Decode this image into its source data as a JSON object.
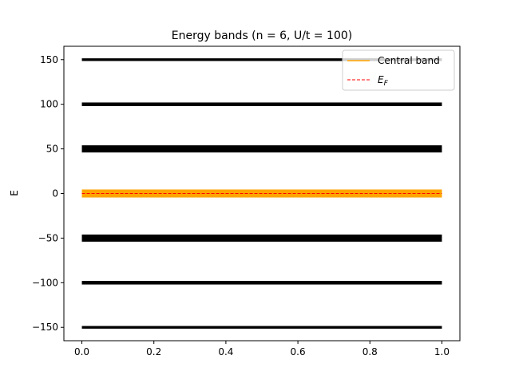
{
  "chart_data": {
    "type": "bar",
    "title": "Energy bands (n = 6, U/t = 100)",
    "xlabel": "",
    "ylabel": "E",
    "xlim": [
      -0.05,
      1.05
    ],
    "ylim": [
      -165,
      165
    ],
    "x_ticks": [
      0.0,
      0.2,
      0.4,
      0.6,
      0.8,
      1.0
    ],
    "x_tick_labels": [
      "0.0",
      "0.2",
      "0.4",
      "0.6",
      "0.8",
      "1.0"
    ],
    "y_ticks": [
      -150,
      -100,
      -50,
      0,
      50,
      100,
      150
    ],
    "y_tick_labels": [
      "−150",
      "−100",
      "−50",
      "0",
      "50",
      "100",
      "150"
    ],
    "bands": [
      {
        "center": 150,
        "lower": 148.5,
        "upper": 151.5,
        "color": "#000000",
        "central": false
      },
      {
        "center": 100,
        "lower": 98,
        "upper": 102,
        "color": "#000000",
        "central": false
      },
      {
        "center": 50,
        "lower": 46,
        "upper": 54,
        "color": "#000000",
        "central": false
      },
      {
        "center": 0,
        "lower": -4.5,
        "upper": 4.5,
        "color": "#ffa500",
        "central": true
      },
      {
        "center": -50,
        "lower": -54,
        "upper": -46,
        "color": "#000000",
        "central": false
      },
      {
        "center": -100,
        "lower": -102,
        "upper": -98,
        "color": "#000000",
        "central": false
      },
      {
        "center": -150,
        "lower": -151.5,
        "upper": -148.5,
        "color": "#000000",
        "central": false
      }
    ],
    "band_x_range": [
      0.0,
      1.0
    ],
    "fermi_level": 0,
    "fermi_color": "#ff0000",
    "legend": {
      "placement": "top-right",
      "entries": [
        {
          "label": "Central band",
          "color": "#ffa500",
          "style": "solid"
        },
        {
          "label": "E",
          "subscript": "F",
          "color": "#ff0000",
          "style": "dashed"
        }
      ]
    },
    "grid": false
  }
}
